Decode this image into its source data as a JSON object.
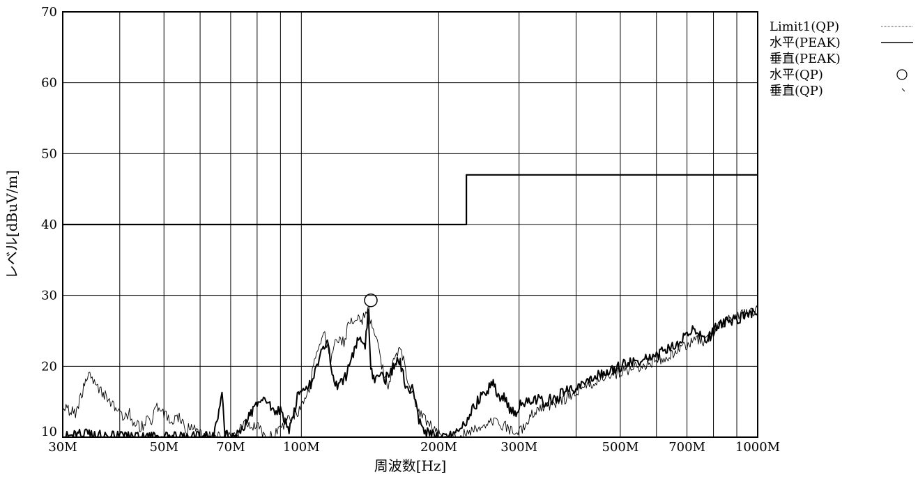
{
  "chart_data": {
    "type": "line",
    "title": "",
    "xlabel": "周波数[Hz]",
    "ylabel": "レベル[dBuV/m]",
    "x_scale": "log",
    "xlim": [
      30,
      1000
    ],
    "ylim": [
      10,
      70
    ],
    "grid": true,
    "legend_position": "top-right, outside plot",
    "x_ticks": [
      {
        "value": 30,
        "label": "30M"
      },
      {
        "value": 50,
        "label": "50M"
      },
      {
        "value": 70,
        "label": "70M"
      },
      {
        "value": 100,
        "label": "100M"
      },
      {
        "value": 200,
        "label": "200M"
      },
      {
        "value": 300,
        "label": "300M"
      },
      {
        "value": 500,
        "label": "500M"
      },
      {
        "value": 700,
        "label": "700M"
      },
      {
        "value": 1000,
        "label": "1000M"
      }
    ],
    "x_minor_grid": [
      40,
      60,
      80,
      90,
      400,
      600,
      800,
      900
    ],
    "y_ticks": [
      {
        "value": 10,
        "label": "10"
      },
      {
        "value": 20,
        "label": "20"
      },
      {
        "value": 30,
        "label": "30"
      },
      {
        "value": 40,
        "label": "40"
      },
      {
        "value": 50,
        "label": "50"
      },
      {
        "value": 60,
        "label": "60"
      },
      {
        "value": 70,
        "label": "70"
      }
    ],
    "legend": [
      {
        "label": "Limit1(QP)",
        "marker": "dotted-line"
      },
      {
        "label": "水平(PEAK)",
        "marker": "solid-line"
      },
      {
        "label": "垂直(PEAK)",
        "marker": "none"
      },
      {
        "label": "水平(QP)",
        "marker": "circle"
      },
      {
        "label": "垂直(QP)",
        "marker": "tick"
      }
    ],
    "series": [
      {
        "name": "Limit1(QP)",
        "style": "limit",
        "points": [
          [
            30,
            40
          ],
          [
            230,
            40
          ],
          [
            230,
            47
          ],
          [
            1000,
            47
          ]
        ]
      },
      {
        "name": "水平(PEAK)",
        "style": "thick",
        "points": [
          [
            30,
            10
          ],
          [
            33,
            10.4
          ],
          [
            36,
            10.2
          ],
          [
            40,
            10
          ],
          [
            45,
            10
          ],
          [
            50,
            10
          ],
          [
            55,
            10
          ],
          [
            60,
            10
          ],
          [
            64,
            10
          ],
          [
            67,
            15.8
          ],
          [
            68,
            10.5
          ],
          [
            72,
            10
          ],
          [
            76,
            12.5
          ],
          [
            80,
            14.5
          ],
          [
            84,
            15
          ],
          [
            88,
            13
          ],
          [
            90,
            14.2
          ],
          [
            94,
            11
          ],
          [
            98,
            15.5
          ],
          [
            102,
            16.5
          ],
          [
            106,
            18
          ],
          [
            110,
            22
          ],
          [
            114,
            23.5
          ],
          [
            118,
            17
          ],
          [
            122,
            17.5
          ],
          [
            126,
            19
          ],
          [
            130,
            22
          ],
          [
            134,
            24.5
          ],
          [
            138,
            23
          ],
          [
            140,
            27.5
          ],
          [
            142,
            20
          ],
          [
            144,
            18
          ],
          [
            148,
            19
          ],
          [
            152,
            18
          ],
          [
            158,
            19.5
          ],
          [
            164,
            21
          ],
          [
            168,
            18
          ],
          [
            172,
            16
          ],
          [
            176,
            17
          ],
          [
            180,
            13
          ],
          [
            185,
            11
          ],
          [
            190,
            10.5
          ],
          [
            200,
            10
          ],
          [
            210,
            10
          ],
          [
            220,
            10.5
          ],
          [
            230,
            12
          ],
          [
            238,
            14
          ],
          [
            246,
            15.5
          ],
          [
            254,
            16.5
          ],
          [
            262,
            17.8
          ],
          [
            270,
            16
          ],
          [
            278,
            15.5
          ],
          [
            286,
            14
          ],
          [
            294,
            13.5
          ],
          [
            305,
            14.8
          ],
          [
            320,
            15.5
          ],
          [
            340,
            15
          ],
          [
            360,
            15.5
          ],
          [
            380,
            16.5
          ],
          [
            400,
            17
          ],
          [
            420,
            17.5
          ],
          [
            440,
            18.5
          ],
          [
            460,
            19
          ],
          [
            480,
            19.5
          ],
          [
            500,
            20
          ],
          [
            520,
            20.5
          ],
          [
            540,
            20.5
          ],
          [
            560,
            21
          ],
          [
            580,
            21.5
          ],
          [
            600,
            21.5
          ],
          [
            620,
            22
          ],
          [
            640,
            22.5
          ],
          [
            660,
            23
          ],
          [
            680,
            23.5
          ],
          [
            700,
            24.5
          ],
          [
            720,
            25
          ],
          [
            740,
            25
          ],
          [
            760,
            24
          ],
          [
            780,
            24
          ],
          [
            800,
            25
          ],
          [
            830,
            26
          ],
          [
            860,
            26.5
          ],
          [
            900,
            26.5
          ],
          [
            940,
            27
          ],
          [
            970,
            27.5
          ],
          [
            1000,
            27.5
          ]
        ]
      },
      {
        "name": "垂直(PEAK)",
        "style": "thin",
        "points": [
          [
            30,
            14.2
          ],
          [
            31,
            13.8
          ],
          [
            32,
            13.5
          ],
          [
            33,
            16
          ],
          [
            34,
            19
          ],
          [
            35,
            18
          ],
          [
            36,
            17
          ],
          [
            37,
            16
          ],
          [
            38,
            15
          ],
          [
            39,
            14
          ],
          [
            40,
            13.5
          ],
          [
            41,
            12.5
          ],
          [
            42,
            13.5
          ],
          [
            43,
            12
          ],
          [
            44,
            11.5
          ],
          [
            45,
            11.5
          ],
          [
            46,
            12.5
          ],
          [
            47,
            12
          ],
          [
            48,
            14.5
          ],
          [
            49,
            14
          ],
          [
            50,
            13.5
          ],
          [
            52,
            12
          ],
          [
            54,
            13
          ],
          [
            56,
            11
          ],
          [
            58,
            11.5
          ],
          [
            60,
            10.5
          ],
          [
            64,
            10
          ],
          [
            68,
            10
          ],
          [
            72,
            10.5
          ],
          [
            76,
            12
          ],
          [
            80,
            11.5
          ],
          [
            84,
            10
          ],
          [
            88,
            10.5
          ],
          [
            92,
            12
          ],
          [
            96,
            13
          ],
          [
            100,
            14
          ],
          [
            104,
            17
          ],
          [
            108,
            22
          ],
          [
            112,
            25
          ],
          [
            116,
            21
          ],
          [
            120,
            24
          ],
          [
            124,
            23.5
          ],
          [
            128,
            26.5
          ],
          [
            132,
            27
          ],
          [
            136,
            26.5
          ],
          [
            140,
            28.5
          ],
          [
            143,
            25
          ],
          [
            146,
            24
          ],
          [
            150,
            20
          ],
          [
            155,
            17
          ],
          [
            160,
            21.5
          ],
          [
            165,
            22.5
          ],
          [
            170,
            19
          ],
          [
            175,
            16
          ],
          [
            180,
            14
          ],
          [
            190,
            12
          ],
          [
            200,
            10.5
          ],
          [
            210,
            10
          ],
          [
            220,
            10
          ],
          [
            240,
            11
          ],
          [
            260,
            12.5
          ],
          [
            280,
            11.5
          ],
          [
            300,
            10.5
          ],
          [
            320,
            13.5
          ],
          [
            350,
            14.5
          ],
          [
            380,
            15.5
          ],
          [
            400,
            16.5
          ],
          [
            430,
            17.5
          ],
          [
            460,
            18.5
          ],
          [
            490,
            19
          ],
          [
            520,
            19.5
          ],
          [
            550,
            20
          ],
          [
            580,
            20.5
          ],
          [
            610,
            21
          ],
          [
            640,
            21.5
          ],
          [
            670,
            22.5
          ],
          [
            700,
            23
          ],
          [
            730,
            24
          ],
          [
            760,
            23.5
          ],
          [
            790,
            24.5
          ],
          [
            820,
            25.5
          ],
          [
            860,
            26.5
          ],
          [
            900,
            27
          ],
          [
            940,
            27.5
          ],
          [
            970,
            27.5
          ],
          [
            1000,
            28
          ]
        ]
      }
    ],
    "qp_markers": [
      {
        "series": "水平(QP)",
        "marker": "circle",
        "x": 142,
        "y": 29.3
      }
    ]
  }
}
